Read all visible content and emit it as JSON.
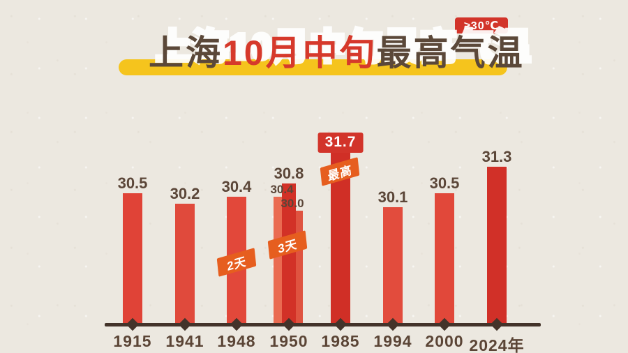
{
  "header": {
    "badge": "≥30℃",
    "title": "上海10月中旬最高气温",
    "title_parts": [
      {
        "text": "上海",
        "color": "#5b4839"
      },
      {
        "text": "10月中旬",
        "color": "#d6392b"
      },
      {
        "text": "最高气温",
        "color": "#5b4839"
      }
    ]
  },
  "chart_data": {
    "type": "bar",
    "title": "上海10月中旬最高气温",
    "threshold_note": "≥30℃",
    "unit": "℃",
    "grid": false,
    "categories": [
      "1915",
      "1941",
      "1948",
      "1950",
      "1985",
      "1994",
      "2000",
      "2024年"
    ],
    "groups": [
      {
        "year": "1915",
        "values": [
          30.5
        ],
        "labels": [
          "30.5"
        ]
      },
      {
        "year": "1941",
        "values": [
          30.2
        ],
        "labels": [
          "30.2"
        ]
      },
      {
        "year": "1948",
        "values": [
          30.4
        ],
        "labels": [
          "30.4"
        ],
        "badge": "2天"
      },
      {
        "year": "1950",
        "values": [
          30.4,
          30.8,
          30.0
        ],
        "labels": [
          "30.4",
          "30.8",
          "30.0"
        ],
        "badge": "3天"
      },
      {
        "year": "1985",
        "values": [
          31.7
        ],
        "labels": [
          "31.7"
        ],
        "badge": "最高",
        "highlight": true
      },
      {
        "year": "1994",
        "values": [
          30.1
        ],
        "labels": [
          "30.1"
        ]
      },
      {
        "year": "2000",
        "values": [
          30.5
        ],
        "labels": [
          "30.5"
        ]
      },
      {
        "year": "2024年",
        "values": [
          31.3
        ],
        "labels": [
          "31.3"
        ]
      }
    ]
  },
  "colors": {
    "background": "#ece8e0",
    "axis": "#43332a",
    "value_text": "#5b4638",
    "year_text": "#5b4536",
    "title_brown": "#5b4839",
    "title_red": "#d6392b",
    "highlight_pill": "#f5c41d",
    "threshold_badge_bg": "#d2342a",
    "label_box_bg": "#d2342a",
    "flag_bg": "#e65e1f",
    "bars": [
      "#e04337",
      "#e04a3c",
      "#e2483a",
      [
        "#ea6b51",
        "#d23127",
        "#df5340"
      ],
      "#d02f26",
      "#e24c3d",
      "#e1483a",
      "#d13028"
    ]
  }
}
